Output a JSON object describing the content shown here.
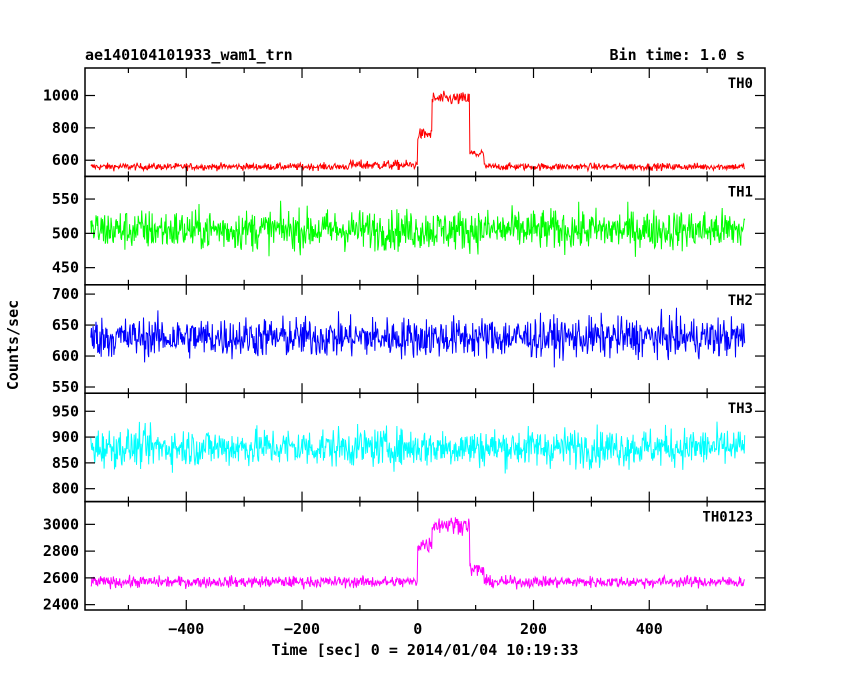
{
  "header": {
    "left": "ae140104101933_wam1_trn",
    "right": "Bin time: 1.0 s"
  },
  "chart_data": {
    "type": "line",
    "title": "ae140104101933_wam1_trn",
    "subtitle": "Bin time: 1.0 s",
    "xlabel": "Time [sec] 0 = 2014/01/04 10:19:33",
    "ylabel": "Counts/sec",
    "xlim": [
      -575,
      600
    ],
    "x_ticks": [
      -400,
      -200,
      0,
      200,
      400
    ],
    "x_data_range": [
      -565,
      565
    ],
    "bin_time_s": 1.0,
    "panels": [
      {
        "name": "TH0",
        "color": "#ff0000",
        "ylim": [
          500,
          1170
        ],
        "y_ticks": [
          600,
          800,
          1000
        ],
        "baseline": 560,
        "noise": 28,
        "features": [
          {
            "t_start": -120,
            "t_end": 0,
            "level": 570
          },
          {
            "t_start": 0,
            "t_end": 25,
            "level": 760
          },
          {
            "t_start": 25,
            "t_end": 90,
            "level": 980
          },
          {
            "t_start": 90,
            "t_end": 115,
            "level": 640
          },
          {
            "t_start": 115,
            "t_end": 565,
            "level": 560
          }
        ]
      },
      {
        "name": "TH1",
        "color": "#00ff00",
        "ylim": [
          425,
          583
        ],
        "y_ticks": [
          450,
          500,
          550
        ],
        "baseline": 505,
        "noise": 38,
        "features": []
      },
      {
        "name": "TH2",
        "color": "#0000ff",
        "ylim": [
          540,
          715
        ],
        "y_ticks": [
          550,
          600,
          650,
          700
        ],
        "baseline": 630,
        "noise": 42,
        "features": []
      },
      {
        "name": "TH3",
        "color": "#00ffff",
        "ylim": [
          775,
          985
        ],
        "y_ticks": [
          800,
          850,
          900,
          950
        ],
        "baseline": 880,
        "noise": 48,
        "features": []
      },
      {
        "name": "TH0123",
        "color": "#ff00ff",
        "ylim": [
          2360,
          3170
        ],
        "y_ticks": [
          2400,
          2600,
          2800,
          3000
        ],
        "baseline": 2570,
        "noise": 55,
        "features": [
          {
            "t_start": 0,
            "t_end": 25,
            "level": 2850
          },
          {
            "t_start": 25,
            "t_end": 90,
            "level": 3000
          },
          {
            "t_start": 90,
            "t_end": 115,
            "level": 2660
          }
        ]
      }
    ]
  }
}
